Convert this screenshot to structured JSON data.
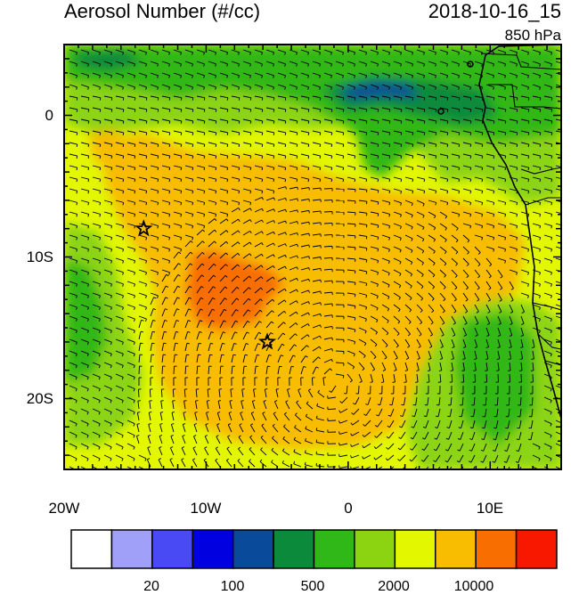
{
  "title": "Aerosol Number (#/cc)",
  "datetime": "2018-10-16_15",
  "level": "850 hPa",
  "lat_ticks": [
    "0",
    "10S",
    "20S"
  ],
  "lon_ticks": [
    "20W",
    "10W",
    "0",
    "10E"
  ],
  "colorbar": {
    "colors": [
      "#ffffff",
      "#a0a0f8",
      "#4a4af5",
      "#0000e0",
      "#0a4a9a",
      "#0a8a3a",
      "#30b818",
      "#8cd412",
      "#e2f700",
      "#f8bc00",
      "#f86e00",
      "#f81800"
    ],
    "labels": [
      "20",
      "100",
      "500",
      "2000",
      "10000"
    ]
  },
  "markers": [
    {
      "name": "star-west",
      "lon": -14.4,
      "lat": -8.0
    },
    {
      "name": "star-south",
      "lon": -5.7,
      "lat": -16.0
    }
  ],
  "map_extent": {
    "lon": [
      -20,
      15
    ],
    "lat": [
      -25,
      5
    ]
  }
}
